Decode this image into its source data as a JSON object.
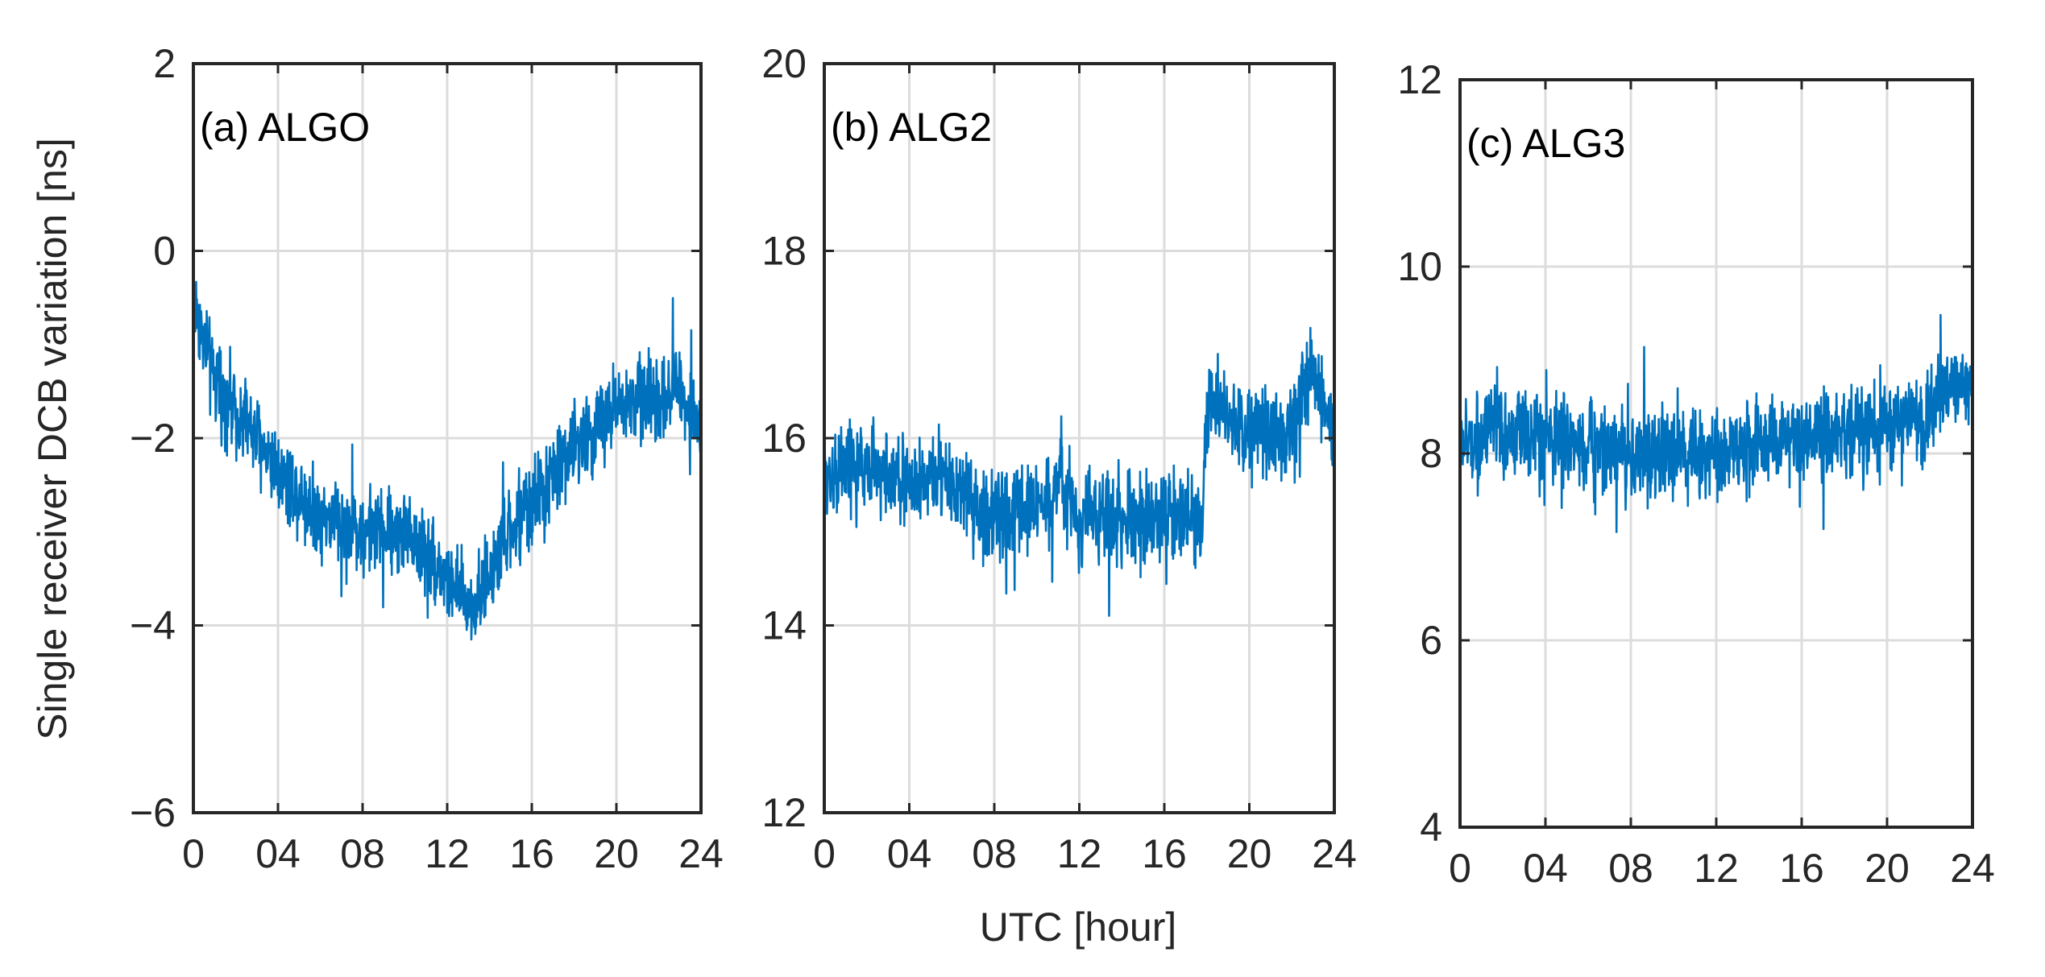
{
  "figure": {
    "xlabel": "UTC [hour]",
    "ylabel": "Single receiver DCB variation [ns]",
    "line_color": "#0072BD"
  },
  "chart_data": [
    {
      "type": "line",
      "title": "(a) ALGO",
      "xlabel": "UTC [hour]",
      "ylabel": "Single receiver DCB variation [ns]",
      "xlim": [
        0,
        24
      ],
      "ylim": [
        -6,
        2
      ],
      "xticks": [
        0,
        4,
        8,
        12,
        16,
        20,
        24
      ],
      "xtick_labels": [
        "0",
        "04",
        "08",
        "12",
        "16",
        "20",
        "24"
      ],
      "yticks": [
        -6,
        -4,
        -2,
        0,
        2
      ],
      "ytick_labels": [
        "−6",
        "−4",
        "−2",
        "0",
        "2"
      ],
      "grid": true,
      "series": [
        {
          "name": "ALGO",
          "x": [
            0,
            1,
            2,
            3,
            4,
            5,
            6,
            7,
            8,
            9,
            10,
            11,
            12,
            13,
            14,
            15,
            16,
            17,
            18,
            19,
            20,
            21,
            22,
            23,
            24
          ],
          "values": [
            -0.5,
            -1.4,
            -1.7,
            -2.0,
            -2.3,
            -2.6,
            -2.8,
            -2.9,
            -3.0,
            -3.0,
            -3.0,
            -3.2,
            -3.5,
            -3.8,
            -3.5,
            -3.0,
            -2.7,
            -2.4,
            -2.1,
            -1.9,
            -1.7,
            -1.6,
            -1.6,
            -1.4,
            -2.0
          ],
          "noise_amplitude": 0.38,
          "range_min": -4.7,
          "range_max": 0.1
        }
      ]
    },
    {
      "type": "line",
      "title": "(b)  ALG2",
      "xlabel": "UTC [hour]",
      "ylabel": "",
      "xlim": [
        0,
        24
      ],
      "ylim": [
        12,
        20
      ],
      "xticks": [
        0,
        4,
        8,
        12,
        16,
        20,
        24
      ],
      "xtick_labels": [
        "0",
        "04",
        "08",
        "12",
        "16",
        "20",
        "24"
      ],
      "yticks": [
        12,
        14,
        16,
        18,
        20
      ],
      "ytick_labels": [
        "12",
        "14",
        "16",
        "18",
        "20"
      ],
      "grid": true,
      "series": [
        {
          "name": "ALG2",
          "x": [
            0,
            1,
            2,
            3,
            4,
            5,
            6,
            7,
            8,
            9,
            10,
            10.9,
            11.1,
            12,
            13,
            14,
            15,
            16,
            17,
            17.8,
            18.0,
            19,
            20,
            21,
            22,
            22.5,
            23,
            24
          ],
          "values": [
            15.6,
            15.7,
            15.7,
            15.6,
            15.5,
            15.6,
            15.5,
            15.3,
            15.1,
            15.2,
            15.3,
            15.4,
            15.6,
            15.1,
            15.2,
            15.1,
            15.2,
            15.1,
            15.2,
            15.1,
            16.4,
            16.2,
            16.1,
            16.0,
            16.1,
            16.6,
            16.7,
            16.0
          ],
          "noise_amplitude": 0.4,
          "range_min": 14.0,
          "range_max": 17.8
        }
      ]
    },
    {
      "type": "line",
      "title": "(c)  ALG3",
      "xlabel": "",
      "ylabel": "",
      "xlim": [
        0,
        24
      ],
      "ylim": [
        4,
        12
      ],
      "xticks": [
        0,
        4,
        8,
        12,
        16,
        20,
        24
      ],
      "xtick_labels": [
        "0",
        "04",
        "08",
        "12",
        "16",
        "20",
        "24"
      ],
      "yticks": [
        4,
        6,
        8,
        10,
        12
      ],
      "ytick_labels": [
        "4",
        "6",
        "8",
        "10",
        "12"
      ],
      "grid": true,
      "series": [
        {
          "name": "ALG3",
          "x": [
            0,
            2,
            4,
            6,
            8,
            10,
            12,
            14,
            16,
            18,
            20,
            22,
            23,
            24
          ],
          "values": [
            8.1,
            8.2,
            8.2,
            8.1,
            8.0,
            8.0,
            8.0,
            8.1,
            8.1,
            8.2,
            8.3,
            8.4,
            8.7,
            8.8
          ],
          "noise_amplitude": 0.4,
          "range_min": 6.8,
          "range_max": 9.6
        }
      ]
    }
  ]
}
